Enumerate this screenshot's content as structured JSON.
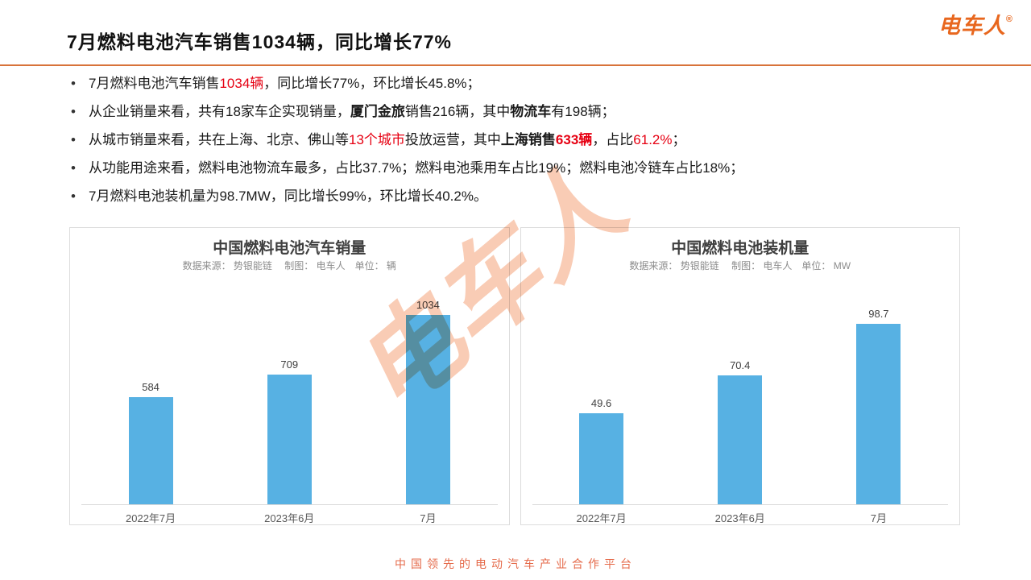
{
  "logo": {
    "text": "电车人",
    "registered": "®",
    "color": "#e8671e"
  },
  "header": {
    "title": "7月燃料电池汽车销售1034辆，同比增长77%",
    "divider_color": "#d8733a"
  },
  "bullet_glyph": "•",
  "bullets": [
    {
      "runs": [
        {
          "t": "7月燃料电池汽车销售"
        },
        {
          "t": "1034辆",
          "s": "red"
        },
        {
          "t": "，同比增长77%，环比增长45.8%；"
        }
      ]
    },
    {
      "runs": [
        {
          "t": "从企业销量来看，共有18家车企实现销量，"
        },
        {
          "t": "厦门金旅",
          "s": "bold"
        },
        {
          "t": "销售216辆，其中"
        },
        {
          "t": "物流车",
          "s": "bold"
        },
        {
          "t": "有198辆；"
        }
      ]
    },
    {
      "runs": [
        {
          "t": "从城市销量来看，共在上海、北京、佛山等"
        },
        {
          "t": "13个城市",
          "s": "red"
        },
        {
          "t": "投放运营，其中"
        },
        {
          "t": "上海销售",
          "s": "bold"
        },
        {
          "t": "633辆",
          "s": "redbold"
        },
        {
          "t": "，占比"
        },
        {
          "t": "61.2%",
          "s": "red"
        },
        {
          "t": "；"
        }
      ]
    },
    {
      "runs": [
        {
          "t": "从功能用途来看，燃料电池物流车最多，占比37.7%；燃料电池乘用车占比19%；燃料电池冷链车占比18%；"
        }
      ]
    },
    {
      "runs": [
        {
          "t": "7月燃料电池装机量为98.7MW，同比增长99%，环比增长40.2%。"
        }
      ]
    }
  ],
  "watermark": {
    "text": "电车人",
    "color": "#f8c3a8"
  },
  "chart_data": [
    {
      "type": "bar",
      "title": "中国燃料电池汽车销量",
      "source_line": "数据来源： 势银能链　 制图： 电车人　单位： 辆",
      "categories": [
        "2022年7月",
        "2023年6月",
        "7月"
      ],
      "values": [
        584,
        709,
        1034
      ],
      "value_labels": [
        "584",
        "709",
        "1034"
      ],
      "ylim": [
        0,
        1100
      ],
      "bar_color": "#57b1e3",
      "grid": false,
      "legend": "none",
      "xlabel": "",
      "ylabel": ""
    },
    {
      "type": "bar",
      "title": "中国燃料电池装机量",
      "source_line": "数据来源： 势银能链　 制图： 电车人　单位： MW",
      "categories": [
        "2022年7月",
        "2023年6月",
        "7月"
      ],
      "values": [
        49.6,
        70.4,
        98.7
      ],
      "value_labels": [
        "49.6",
        "70.4",
        "98.7"
      ],
      "ylim": [
        0,
        110
      ],
      "bar_color": "#57b1e3",
      "grid": false,
      "legend": "none",
      "xlabel": "",
      "ylabel": ""
    }
  ],
  "footer": {
    "text": "中国领先的电动汽车产业合作平台"
  }
}
